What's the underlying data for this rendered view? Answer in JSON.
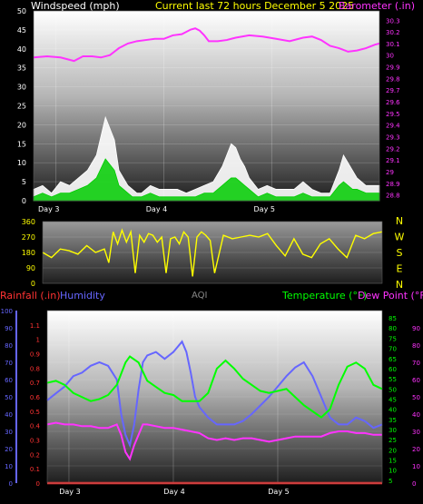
{
  "panels": {
    "wind": {
      "left_title": "Windspeed (mph)",
      "center_title": "Current last 72 hours December 5 2025",
      "right_title": "Barometer (.in)",
      "colors": {
        "left": "#ffffff",
        "center": "#ffff00",
        "right": "#ff33ff"
      }
    },
    "direction": {
      "compass": [
        "N",
        "W",
        "S",
        "E",
        "N"
      ],
      "color": "#ffff00"
    },
    "weather": {
      "title_rain": "Rainfall (.in)",
      "title_humidity": "Humidity",
      "title_aqi": "AQI",
      "title_temp": "Temperature (°F)",
      "title_dew": "Dew Point (°F)",
      "colors": {
        "rain": "#ff3333",
        "humidity": "#6666ff",
        "aqi": "#888888",
        "temp": "#00ff00",
        "dew": "#ff33ff"
      }
    }
  },
  "chart_data": [
    {
      "type": "area",
      "id": "wind",
      "title": "Current last 72 hours December 5 2025",
      "ylabel": "Windspeed (mph)",
      "y2label": "Barometer (.in)",
      "ylim": [
        0,
        50
      ],
      "y_ticks": [
        0,
        5,
        10,
        15,
        20,
        25,
        30,
        35,
        40,
        45,
        50
      ],
      "y2lim": [
        28.75,
        30.38
      ],
      "y2_ticks": [
        "28.8",
        "28.9",
        "29",
        "29.1",
        "29.2",
        "29.3",
        "29.4",
        "29.5",
        "29.6",
        "29.7",
        "29.8",
        "29.9",
        "30",
        "30.1",
        "30.2",
        "30.3"
      ],
      "x_tick_labels": [
        "Day 3",
        "Day 4",
        "Day 5"
      ],
      "x_tick_hours": [
        0,
        24,
        48
      ],
      "xlim_hours": [
        -5,
        72
      ],
      "series": [
        {
          "name": "Gust",
          "color": "#ffffff",
          "x": [
            -5,
            -3,
            -1,
            1,
            3,
            5,
            7,
            9,
            11,
            13,
            14,
            15,
            16,
            17,
            18,
            19,
            21,
            23,
            25,
            27,
            29,
            31,
            33,
            35,
            37,
            38,
            39,
            40,
            41,
            42,
            43,
            45,
            47,
            49,
            51,
            53,
            55,
            57,
            59,
            61,
            63,
            64,
            65,
            66,
            67,
            69,
            71,
            72
          ],
          "y": [
            3,
            4,
            2,
            5,
            4,
            6,
            8,
            12,
            22,
            16,
            8,
            6,
            4,
            3,
            2,
            2,
            4,
            3,
            3,
            3,
            2,
            3,
            4,
            5,
            9,
            12,
            15,
            14,
            11,
            9,
            6,
            3,
            4,
            3,
            3,
            3,
            5,
            3,
            2,
            2,
            8,
            12,
            10,
            8,
            6,
            4,
            4,
            4
          ]
        },
        {
          "name": "Wind",
          "color": "#00cc00",
          "x": [
            -5,
            -3,
            -1,
            1,
            3,
            5,
            7,
            9,
            11,
            13,
            14,
            15,
            16,
            17,
            18,
            19,
            21,
            23,
            25,
            27,
            29,
            31,
            33,
            35,
            37,
            38,
            39,
            40,
            41,
            42,
            43,
            45,
            47,
            49,
            51,
            53,
            55,
            57,
            59,
            61,
            63,
            64,
            65,
            66,
            67,
            69,
            71,
            72
          ],
          "y": [
            1,
            2,
            1,
            2,
            2,
            3,
            4,
            6,
            11,
            8,
            4,
            3,
            2,
            1,
            1,
            1,
            2,
            1,
            1,
            1,
            1,
            1,
            2,
            2,
            4,
            5,
            6,
            6,
            5,
            4,
            3,
            1,
            2,
            1,
            1,
            1,
            2,
            1,
            1,
            1,
            4,
            5,
            4,
            3,
            3,
            2,
            2,
            2
          ]
        },
        {
          "name": "Barometer",
          "color": "#ff33ff",
          "x": [
            -5,
            -2,
            1,
            4,
            6,
            8,
            10,
            12,
            14,
            16,
            18,
            20,
            22,
            24,
            26,
            28,
            30,
            31,
            32,
            33,
            34,
            36,
            38,
            40,
            43,
            46,
            49,
            52,
            55,
            57,
            59,
            61,
            63,
            65,
            67,
            69,
            71,
            72
          ],
          "y": [
            29.98,
            29.99,
            29.98,
            29.95,
            29.99,
            29.99,
            29.98,
            30.0,
            30.06,
            30.1,
            30.12,
            30.13,
            30.14,
            30.14,
            30.17,
            30.18,
            30.22,
            30.23,
            30.21,
            30.17,
            30.12,
            30.12,
            30.13,
            30.15,
            30.17,
            30.16,
            30.14,
            30.12,
            30.15,
            30.16,
            30.13,
            30.08,
            30.06,
            30.03,
            30.04,
            30.06,
            30.09,
            30.1
          ]
        }
      ]
    },
    {
      "type": "line",
      "id": "direction",
      "ylim": [
        0,
        360
      ],
      "y_ticks": [
        0,
        90,
        180,
        270,
        360
      ],
      "xlim_hours": [
        -5,
        72
      ],
      "series": [
        {
          "name": "Direction",
          "color": "#ffff00",
          "x": [
            -5,
            -3,
            -1,
            1,
            3,
            5,
            7,
            9,
            10,
            11,
            12,
            13,
            14,
            15,
            16,
            17,
            18,
            19,
            20,
            21,
            22,
            23,
            24,
            25,
            26,
            27,
            28,
            29,
            30,
            31,
            32,
            33,
            34,
            36,
            38,
            40,
            42,
            44,
            46,
            48,
            50,
            52,
            54,
            56,
            58,
            60,
            62,
            64,
            66,
            68,
            70,
            72
          ],
          "y": [
            180,
            150,
            200,
            190,
            170,
            220,
            180,
            200,
            120,
            300,
            230,
            310,
            240,
            300,
            60,
            280,
            240,
            290,
            280,
            240,
            270,
            60,
            260,
            270,
            230,
            300,
            270,
            40,
            270,
            300,
            280,
            250,
            60,
            280,
            260,
            270,
            280,
            270,
            290,
            220,
            160,
            260,
            170,
            150,
            230,
            260,
            200,
            150,
            280,
            260,
            290,
            300
          ]
        }
      ]
    },
    {
      "type": "line",
      "id": "weather",
      "xlim_hours": [
        -5,
        72
      ],
      "x_tick_labels": [
        "Day 3",
        "Day 4",
        "Day 5"
      ],
      "x_tick_hours": [
        0,
        24,
        48
      ],
      "humidity_ylim": [
        0,
        100
      ],
      "humidity_ticks": [
        0,
        10,
        20,
        30,
        40,
        50,
        60,
        70,
        80,
        90,
        100
      ],
      "rain_ylim": [
        0,
        1.2
      ],
      "rain_ticks": [
        "0",
        "0.1",
        "0.2",
        "0.3",
        "0.4",
        "0.5",
        "0.6",
        "0.7",
        "0.8",
        "0.9",
        "1",
        "1.1"
      ],
      "temp_ylim": [
        3.6,
        88.6
      ],
      "temp_ticks": [
        5,
        10,
        15,
        20,
        25,
        30,
        35,
        40,
        45,
        50,
        55,
        60,
        65,
        70,
        75,
        80,
        85
      ],
      "dew_ylim": [
        0,
        100
      ],
      "dew_ticks": [
        0,
        10,
        20,
        30,
        40,
        50,
        60,
        70,
        80,
        90
      ],
      "series": [
        {
          "name": "Humidity",
          "color": "#6666ff",
          "axis": "humidity",
          "x": [
            -5,
            -3,
            -1,
            1,
            3,
            5,
            7,
            9,
            11,
            12,
            13,
            14,
            15,
            16,
            17,
            18,
            20,
            22,
            24,
            26,
            27,
            28,
            29,
            30,
            32,
            34,
            36,
            38,
            40,
            42,
            44,
            46,
            48,
            50,
            52,
            54,
            56,
            58,
            60,
            62,
            64,
            66,
            68,
            70,
            72
          ],
          "y": [
            48,
            52,
            56,
            62,
            64,
            68,
            70,
            68,
            60,
            40,
            28,
            22,
            34,
            54,
            70,
            74,
            76,
            72,
            76,
            82,
            76,
            64,
            50,
            44,
            38,
            34,
            34,
            34,
            36,
            40,
            45,
            50,
            56,
            62,
            67,
            70,
            62,
            50,
            38,
            34,
            34,
            38,
            36,
            32,
            34
          ]
        },
        {
          "name": "Temperature",
          "color": "#00ff00",
          "axis": "temp",
          "x": [
            -5,
            -3,
            -1,
            1,
            3,
            5,
            7,
            9,
            11,
            13,
            14,
            16,
            18,
            20,
            22,
            24,
            26,
            28,
            30,
            32,
            34,
            36,
            38,
            40,
            42,
            44,
            46,
            48,
            50,
            52,
            54,
            56,
            58,
            60,
            62,
            64,
            66,
            68,
            70,
            72
          ],
          "y": [
            53,
            54,
            52,
            48,
            46,
            44,
            45,
            47,
            52,
            63,
            66,
            63,
            54,
            51,
            48,
            47,
            44,
            44,
            44,
            48,
            60,
            64,
            60,
            55,
            52,
            49,
            48,
            49,
            50,
            46,
            42,
            39,
            36,
            40,
            52,
            61,
            63,
            60,
            52,
            50
          ]
        },
        {
          "name": "Dew Point",
          "color": "#ff33ff",
          "axis": "dew",
          "x": [
            -5,
            -3,
            -1,
            1,
            3,
            5,
            7,
            9,
            11,
            12,
            13,
            14,
            15,
            16,
            17,
            18,
            20,
            22,
            24,
            26,
            28,
            30,
            32,
            34,
            36,
            38,
            40,
            42,
            44,
            46,
            48,
            50,
            52,
            54,
            56,
            58,
            60,
            62,
            64,
            66,
            68,
            70,
            72
          ],
          "y": [
            34,
            35,
            34,
            34,
            33,
            33,
            32,
            32,
            34,
            28,
            18,
            14,
            22,
            28,
            34,
            34,
            33,
            32,
            32,
            31,
            30,
            29,
            26,
            25,
            26,
            25,
            26,
            26,
            25,
            24,
            25,
            26,
            27,
            27,
            27,
            27,
            29,
            30,
            30,
            29,
            29,
            28,
            28
          ]
        },
        {
          "name": "Rainfall",
          "color": "#ff3333",
          "axis": "rain",
          "x": [
            -5,
            72
          ],
          "y": [
            0,
            0
          ]
        }
      ]
    }
  ]
}
